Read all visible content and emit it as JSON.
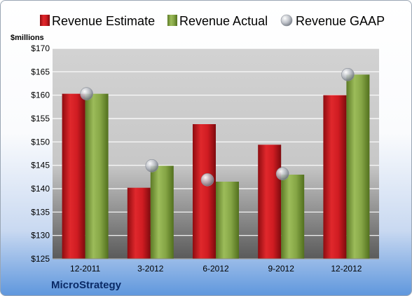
{
  "chart_data": {
    "type": "bar",
    "categories": [
      "12-2011",
      "3-2012",
      "6-2012",
      "9-2012",
      "12-2012"
    ],
    "series": [
      {
        "name": "Revenue Estimate",
        "kind": "bar",
        "color": "#c0141c",
        "values": [
          160.3,
          140.2,
          153.8,
          149.4,
          160.0
        ]
      },
      {
        "name": "Revenue Actual",
        "kind": "bar",
        "color": "#7a9a3a",
        "values": [
          160.3,
          144.9,
          141.5,
          143.0,
          164.4
        ]
      },
      {
        "name": "Revenue GAAP",
        "kind": "marker",
        "color": "#b8bcc4",
        "values": [
          160.3,
          144.9,
          141.9,
          143.2,
          164.4
        ]
      }
    ],
    "ylabel": "$millions",
    "ylim": [
      125,
      170
    ],
    "ytick_step": 5,
    "ytick_labels": [
      "$125",
      "$130",
      "$135",
      "$140",
      "$145",
      "$150",
      "$155",
      "$160",
      "$165",
      "$170"
    ],
    "grid": true,
    "legend_position": "top",
    "footer": "MicroStrategy"
  }
}
